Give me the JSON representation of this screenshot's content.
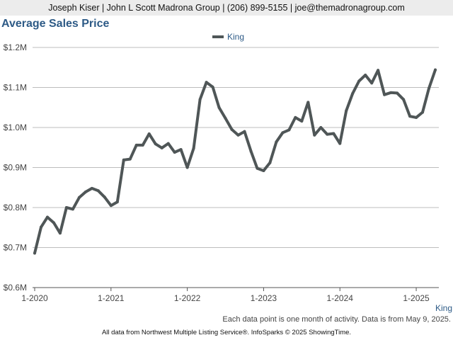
{
  "header": {
    "contact_line": "Joseph Kiser | John L Scott Madrona Group | (206) 899-5155 | joe@themadronagroup.com"
  },
  "chart_data": {
    "type": "line",
    "title": "Average Sales Price",
    "xlabel": "",
    "ylabel": "",
    "ylim": [
      600000,
      1200000
    ],
    "yticks": [
      600000,
      700000,
      800000,
      900000,
      1000000,
      1100000,
      1200000
    ],
    "ytick_labels": [
      "$0.6M",
      "$0.7M",
      "$0.8M",
      "$0.9M",
      "$1.0M",
      "$1.1M",
      "$1.2M"
    ],
    "xticks": [
      "2020-01",
      "2021-01",
      "2022-01",
      "2023-01",
      "2024-01",
      "2025-01"
    ],
    "xtick_labels": [
      "1-2020",
      "1-2021",
      "1-2022",
      "1-2023",
      "1-2024",
      "1-2025"
    ],
    "x_axis_label": "King",
    "grid": true,
    "legend_position": "top-center",
    "series": [
      {
        "name": "King",
        "color": "#4f5657",
        "x": [
          "2020-01",
          "2020-02",
          "2020-03",
          "2020-04",
          "2020-05",
          "2020-06",
          "2020-07",
          "2020-08",
          "2020-09",
          "2020-10",
          "2020-11",
          "2020-12",
          "2021-01",
          "2021-02",
          "2021-03",
          "2021-04",
          "2021-05",
          "2021-06",
          "2021-07",
          "2021-08",
          "2021-09",
          "2021-10",
          "2021-11",
          "2021-12",
          "2022-01",
          "2022-02",
          "2022-03",
          "2022-04",
          "2022-05",
          "2022-06",
          "2022-07",
          "2022-08",
          "2022-09",
          "2022-10",
          "2022-11",
          "2022-12",
          "2023-01",
          "2023-02",
          "2023-03",
          "2023-04",
          "2023-05",
          "2023-06",
          "2023-07",
          "2023-08",
          "2023-09",
          "2023-10",
          "2023-11",
          "2023-12",
          "2024-01",
          "2024-02",
          "2024-03",
          "2024-04",
          "2024-05",
          "2024-06",
          "2024-07",
          "2024-08",
          "2024-09",
          "2024-10",
          "2024-11",
          "2024-12",
          "2025-01",
          "2025-02",
          "2025-03",
          "2025-04"
        ],
        "values": [
          686000,
          751000,
          776000,
          762000,
          736000,
          800000,
          796000,
          825000,
          839000,
          848000,
          842000,
          826000,
          805000,
          814000,
          919000,
          921000,
          956000,
          956000,
          984000,
          959000,
          949000,
          960000,
          938000,
          945000,
          900000,
          948000,
          1070000,
          1113000,
          1101000,
          1050000,
          1023000,
          995000,
          981000,
          990000,
          941000,
          898000,
          892000,
          912000,
          964000,
          987000,
          994000,
          1025000,
          1016000,
          1063000,
          981000,
          1000000,
          983000,
          985000,
          960000,
          1042000,
          1085000,
          1116000,
          1131000,
          1111000,
          1143000,
          1082000,
          1087000,
          1086000,
          1070000,
          1028000,
          1025000,
          1038000,
          1098000,
          1144000
        ]
      }
    ]
  },
  "footer": {
    "note": "Each data point is one month of activity. Data is from May 9, 2025.",
    "credit": "All data from Northwest Multiple Listing Service®. InfoSparks © 2025 ShowingTime."
  }
}
